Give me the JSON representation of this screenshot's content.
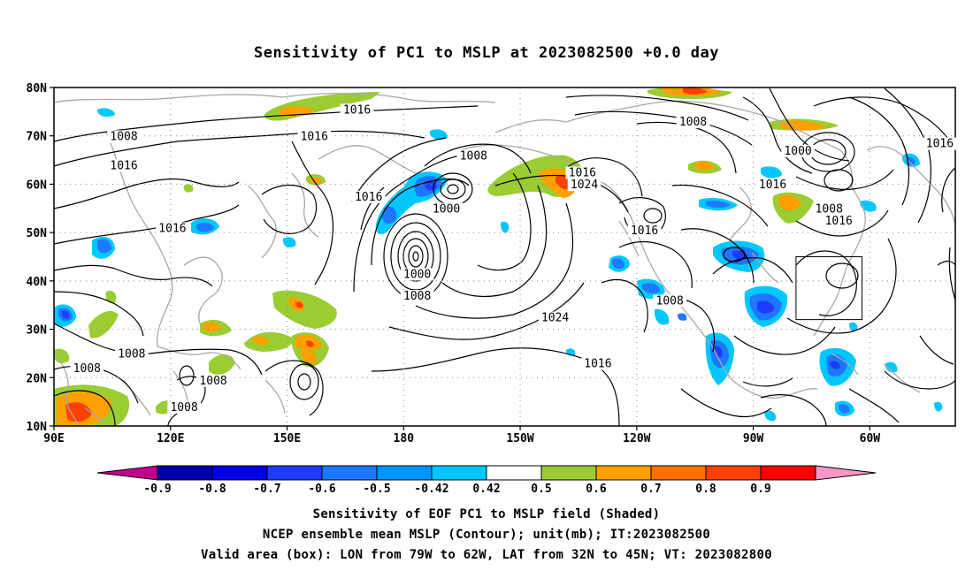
{
  "title": "Sensitivity of PC1 to MSLP at 2023082500 +0.0 day",
  "map": {
    "lat_labels": [
      "80N",
      "70N",
      "60N",
      "50N",
      "40N",
      "30N",
      "20N",
      "10N"
    ],
    "lon_labels": [
      "90E",
      "120E",
      "150E",
      "180",
      "150W",
      "120W",
      "90W",
      "60W"
    ],
    "lat_values": [
      80,
      70,
      60,
      50,
      40,
      30,
      20,
      10
    ],
    "lon_values": [
      90,
      120,
      150,
      180,
      210,
      240,
      270,
      300
    ],
    "lon_range": [
      90,
      322
    ],
    "lat_range": [
      10,
      80
    ],
    "valid_box": {
      "lon": [
        281,
        298
      ],
      "lat": [
        32,
        45
      ]
    },
    "contour_labels": [
      {
        "text": "1016",
        "lon": 168,
        "lat": 75
      },
      {
        "text": "1016",
        "lon": 157,
        "lat": 69.5
      },
      {
        "text": "1008",
        "lon": 108,
        "lat": 69.5
      },
      {
        "text": "1016",
        "lon": 108,
        "lat": 63.5
      },
      {
        "text": "1016",
        "lon": 120.5,
        "lat": 50.5
      },
      {
        "text": "1016",
        "lon": 171,
        "lat": 57
      },
      {
        "text": "1008",
        "lon": 198,
        "lat": 65.5
      },
      {
        "text": "1000",
        "lon": 191,
        "lat": 54.5
      },
      {
        "text": "1016",
        "lon": 226,
        "lat": 62
      },
      {
        "text": "1024",
        "lon": 226.5,
        "lat": 59.5
      },
      {
        "text": "1008",
        "lon": 254.5,
        "lat": 72.5
      },
      {
        "text": "1000",
        "lon": 281.5,
        "lat": 66.5
      },
      {
        "text": "1016",
        "lon": 275,
        "lat": 59.5
      },
      {
        "text": "1008",
        "lon": 289.5,
        "lat": 54.5
      },
      {
        "text": "1016",
        "lon": 292,
        "lat": 52
      },
      {
        "text": "1016",
        "lon": 318,
        "lat": 68
      },
      {
        "text": "1016",
        "lon": 242,
        "lat": 50
      },
      {
        "text": "1000",
        "lon": 183.5,
        "lat": 41
      },
      {
        "text": "1008",
        "lon": 183.5,
        "lat": 36.5
      },
      {
        "text": "1024",
        "lon": 219,
        "lat": 32
      },
      {
        "text": "1008",
        "lon": 248.5,
        "lat": 35.5
      },
      {
        "text": "1016",
        "lon": 230,
        "lat": 22.5
      },
      {
        "text": "1008",
        "lon": 110,
        "lat": 24.5
      },
      {
        "text": "1008",
        "lon": 98.5,
        "lat": 21.5
      },
      {
        "text": "1008",
        "lon": 131,
        "lat": 19
      },
      {
        "text": "1008",
        "lon": 123.5,
        "lat": 13.5
      }
    ]
  },
  "colorbar": {
    "labels": [
      "-0.9",
      "-0.8",
      "-0.7",
      "-0.6",
      "-0.5",
      "-0.42",
      "0.42",
      "0.5",
      "0.6",
      "0.7",
      "0.8",
      "0.9"
    ],
    "colors": [
      "#c0008f",
      "#0000aa",
      "#0000e6",
      "#1e3cff",
      "#1e78ff",
      "#0096ff",
      "#00c8ff",
      "#ffffff",
      "#9acd32",
      "#ff9f00",
      "#ff7000",
      "#ff4000",
      "#ff0000",
      "#f598c8"
    ]
  },
  "caption": {
    "line1": "Sensitivity of EOF PC1 to MSLP field (Shaded)",
    "line2": "NCEP ensemble mean MSLP (Contour); unit(mb); IT:2023082500",
    "line3": "Valid area (box): LON from 79W to 62W, LAT from 32N to 45N; VT: 2023082800"
  }
}
